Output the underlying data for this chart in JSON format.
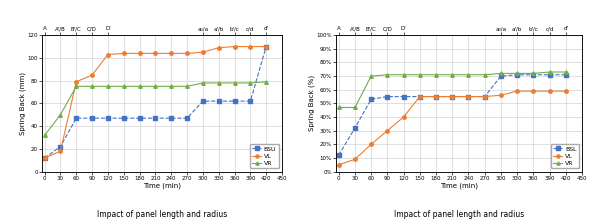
{
  "left": {
    "title": "Impact of panel length and radius",
    "xlabel": "Time (min)",
    "ylabel": "Spring Back (mm)",
    "ylim": [
      0,
      120
    ],
    "yticks": [
      0,
      20,
      40,
      60,
      80,
      100,
      120
    ],
    "xlim": [
      -5,
      450
    ],
    "xticks": [
      0,
      30,
      60,
      90,
      120,
      150,
      180,
      210,
      240,
      270,
      300,
      330,
      360,
      390,
      420,
      450
    ],
    "top_ticks": [
      0,
      30,
      60,
      90,
      120,
      300,
      330,
      360,
      390,
      420
    ],
    "top_labels": [
      "A",
      "A'/B",
      "B'/C",
      "C/D",
      "D'",
      "a₀/a",
      "a'/b",
      "b'/c",
      "c/d",
      "d'"
    ],
    "series": [
      {
        "name": "BSU",
        "color": "#4472c4",
        "linestyle": "--",
        "marker": "s",
        "x": [
          0,
          30,
          60,
          90,
          120,
          150,
          180,
          210,
          240,
          270,
          300,
          330,
          360,
          390,
          420
        ],
        "y": [
          12,
          22,
          47,
          47,
          47,
          47,
          47,
          47,
          47,
          47,
          62,
          62,
          62,
          62,
          110
        ]
      },
      {
        "name": "VL",
        "color": "#ed7d31",
        "linestyle": "-",
        "marker": "o",
        "x": [
          0,
          30,
          60,
          90,
          120,
          150,
          180,
          210,
          240,
          270,
          300,
          330,
          360,
          390,
          420
        ],
        "y": [
          12,
          18,
          79,
          85,
          103,
          104,
          104,
          104,
          104,
          104,
          105,
          109,
          110,
          110,
          110
        ]
      },
      {
        "name": "VR",
        "color": "#70ad47",
        "linestyle": "-",
        "marker": "^",
        "x": [
          0,
          30,
          60,
          90,
          120,
          150,
          180,
          210,
          240,
          270,
          300,
          330,
          360,
          390,
          420
        ],
        "y": [
          32,
          50,
          75,
          75,
          75,
          75,
          75,
          75,
          75,
          75,
          78,
          78,
          78,
          78,
          79
        ]
      }
    ]
  },
  "right": {
    "title": "Impact of panel length and radius",
    "xlabel": "Time (min)",
    "ylabel": "Spring Back (%)",
    "ylim": [
      0,
      1.0
    ],
    "yticks": [
      0,
      0.1,
      0.2,
      0.3,
      0.4,
      0.5,
      0.6,
      0.7,
      0.8,
      0.9,
      1.0
    ],
    "xlim": [
      -5,
      450
    ],
    "xticks": [
      0,
      30,
      60,
      90,
      120,
      150,
      180,
      210,
      240,
      270,
      300,
      330,
      360,
      390,
      420,
      450
    ],
    "top_ticks": [
      0,
      30,
      60,
      90,
      120,
      300,
      330,
      360,
      390,
      420
    ],
    "top_labels": [
      "A",
      "A'/B",
      "B'/C",
      "C/D",
      "D'",
      "a₀/a",
      "a'/b",
      "b'/c",
      "c/d",
      "d'"
    ],
    "series": [
      {
        "name": "BSL",
        "color": "#4472c4",
        "linestyle": "--",
        "marker": "s",
        "x": [
          0,
          30,
          60,
          90,
          120,
          150,
          180,
          210,
          240,
          270,
          300,
          330,
          360,
          390,
          420
        ],
        "y": [
          0.12,
          0.32,
          0.53,
          0.55,
          0.55,
          0.55,
          0.55,
          0.55,
          0.55,
          0.55,
          0.7,
          0.71,
          0.71,
          0.71,
          0.71
        ]
      },
      {
        "name": "VL",
        "color": "#ed7d31",
        "linestyle": "-",
        "marker": "o",
        "x": [
          0,
          30,
          60,
          90,
          120,
          150,
          180,
          210,
          240,
          270,
          300,
          330,
          360,
          390,
          420
        ],
        "y": [
          0.05,
          0.09,
          0.2,
          0.3,
          0.4,
          0.55,
          0.55,
          0.55,
          0.55,
          0.55,
          0.56,
          0.59,
          0.59,
          0.59,
          0.59
        ]
      },
      {
        "name": "VR",
        "color": "#70ad47",
        "linestyle": "-",
        "marker": "^",
        "x": [
          0,
          30,
          60,
          90,
          120,
          150,
          180,
          210,
          240,
          270,
          300,
          330,
          360,
          390,
          420
        ],
        "y": [
          0.47,
          0.47,
          0.7,
          0.71,
          0.71,
          0.71,
          0.71,
          0.71,
          0.71,
          0.71,
          0.72,
          0.72,
          0.72,
          0.73,
          0.73
        ]
      }
    ]
  },
  "bg_color": "#ffffff",
  "grid_color": "#c8c8c8",
  "title_fontsize": 5.5,
  "label_fontsize": 5,
  "tick_fontsize": 4,
  "legend_fontsize": 4.5,
  "marker_size": 2.5,
  "line_width": 0.8
}
